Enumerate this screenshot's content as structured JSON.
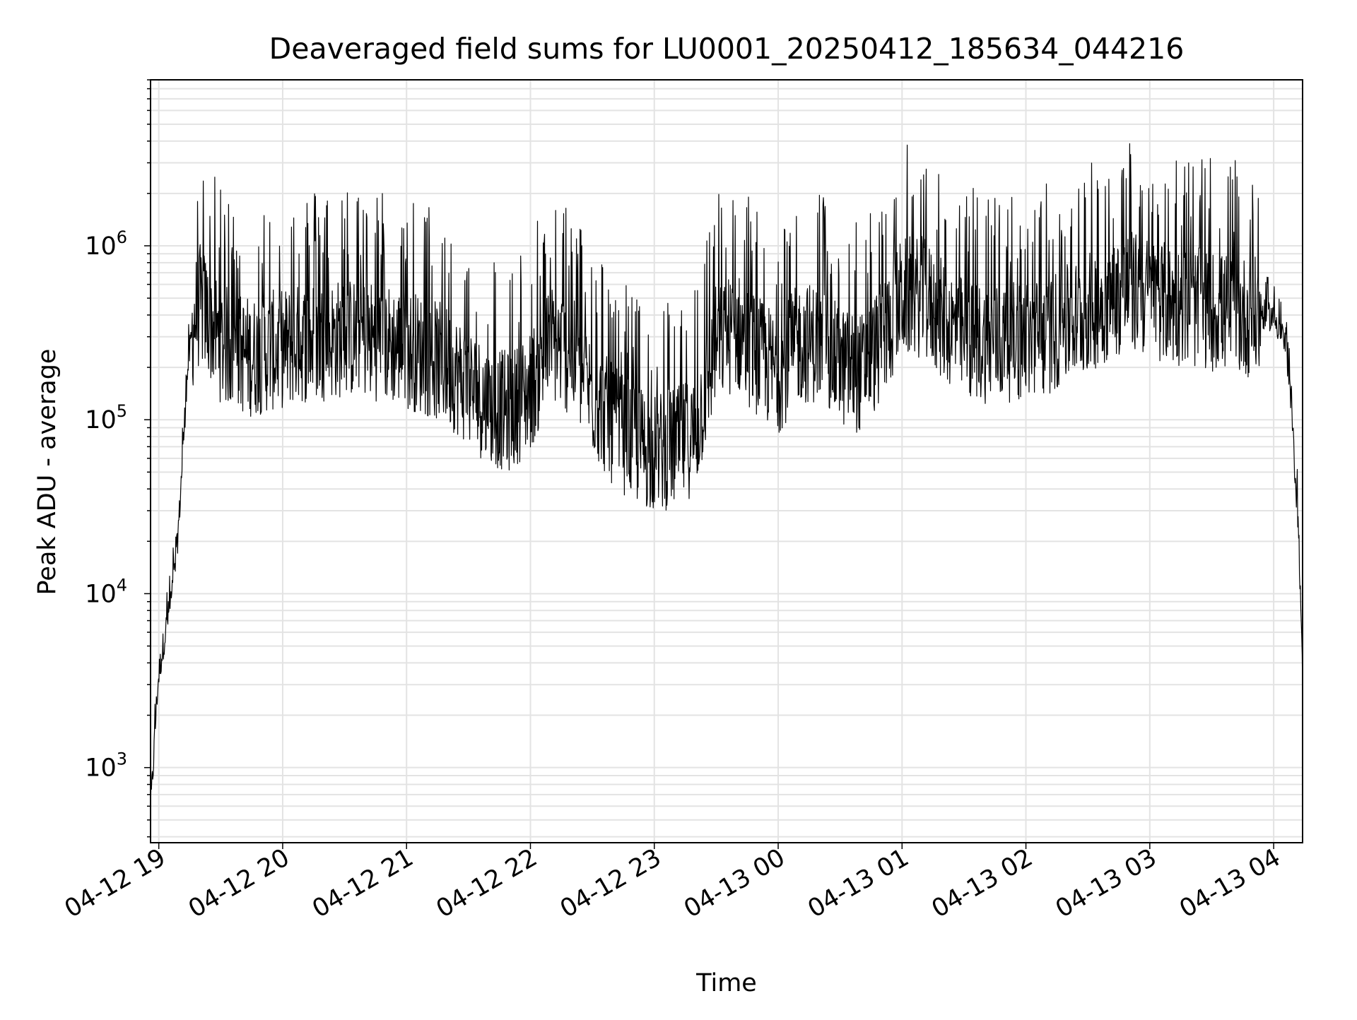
{
  "chart_data": {
    "type": "line",
    "title": "Deaveraged field sums for LU0001_20250412_185634_044216",
    "xlabel": "Time",
    "ylabel": "Peak ADU - average",
    "yscale": "log",
    "ylim": [
      370,
      9000000
    ],
    "xlim": [
      "04-12 18:56",
      "04-13 04:14"
    ],
    "x_ticks": [
      "04-12 19",
      "04-12 20",
      "04-12 21",
      "04-12 22",
      "04-12 23",
      "04-13 00",
      "04-13 01",
      "04-13 02",
      "04-13 03",
      "04-13 04"
    ],
    "y_ticks": [
      {
        "base": "10",
        "exp": "3",
        "value": 1000
      },
      {
        "base": "10",
        "exp": "4",
        "value": 10000
      },
      {
        "base": "10",
        "exp": "5",
        "value": 100000
      },
      {
        "base": "10",
        "exp": "6",
        "value": 1000000
      }
    ],
    "grid": true,
    "line_color": "#000000",
    "series": [
      {
        "x": [
          "04-12 18:56",
          "04-12 18:57",
          "04-12 18:58",
          "04-12 18:59",
          "04-12 19:00",
          "04-12 19:02",
          "04-12 19:04",
          "04-12 19:06",
          "04-12 19:08",
          "04-12 19:10",
          "04-12 19:12",
          "04-12 19:14",
          "04-12 19:17",
          "04-12 19:20",
          "04-12 19:25",
          "04-12 19:30",
          "04-12 19:35",
          "04-12 19:40",
          "04-12 19:45",
          "04-12 19:50",
          "04-12 20:00",
          "04-12 20:10",
          "04-12 20:20",
          "04-12 20:30",
          "04-12 20:40",
          "04-12 20:50",
          "04-12 21:00",
          "04-12 21:10",
          "04-12 21:20",
          "04-12 21:30",
          "04-12 21:40",
          "04-12 21:50",
          "04-12 22:00",
          "04-12 22:10",
          "04-12 22:20",
          "04-12 22:30",
          "04-12 22:40",
          "04-12 22:50",
          "04-12 23:00",
          "04-12 23:10",
          "04-12 23:20",
          "04-12 23:30",
          "04-12 23:40",
          "04-12 23:50",
          "04-13 00:00",
          "04-13 00:10",
          "04-13 00:20",
          "04-13 00:30",
          "04-13 00:40",
          "04-13 00:50",
          "04-13 01:00",
          "04-13 01:10",
          "04-13 01:20",
          "04-13 01:30",
          "04-13 01:40",
          "04-13 01:50",
          "04-13 02:00",
          "04-13 02:10",
          "04-13 02:20",
          "04-13 02:30",
          "04-13 02:40",
          "04-13 02:50",
          "04-13 03:00",
          "04-13 03:10",
          "04-13 03:20",
          "04-13 03:30",
          "04-13 03:40",
          "04-13 03:50",
          "04-13 04:00",
          "04-13 04:05",
          "04-13 04:08",
          "04-13 04:10",
          "04-13 04:12",
          "04-13 04:13",
          "04-13 04:14"
        ],
        "values": [
          600,
          900,
          1500,
          2500,
          3500,
          5000,
          7000,
          9500,
          14000,
          30000,
          80000,
          200000,
          400000,
          500000,
          400000,
          300000,
          280000,
          260000,
          250000,
          260000,
          280000,
          300000,
          310000,
          320000,
          320000,
          300000,
          280000,
          250000,
          220000,
          170000,
          130000,
          120000,
          160000,
          300000,
          250000,
          150000,
          100000,
          80000,
          70000,
          75000,
          90000,
          300000,
          350000,
          250000,
          200000,
          300000,
          300000,
          220000,
          200000,
          300000,
          550000,
          550000,
          400000,
          320000,
          300000,
          300000,
          310000,
          330000,
          380000,
          450000,
          520000,
          600000,
          550000,
          500000,
          480000,
          460000,
          440000,
          420000,
          400000,
          300000,
          150000,
          60000,
          25000,
          10000,
          3000
        ],
        "noise": {
          "lower_decades": 0.5,
          "upper_decades": 0.85
        }
      }
    ]
  }
}
